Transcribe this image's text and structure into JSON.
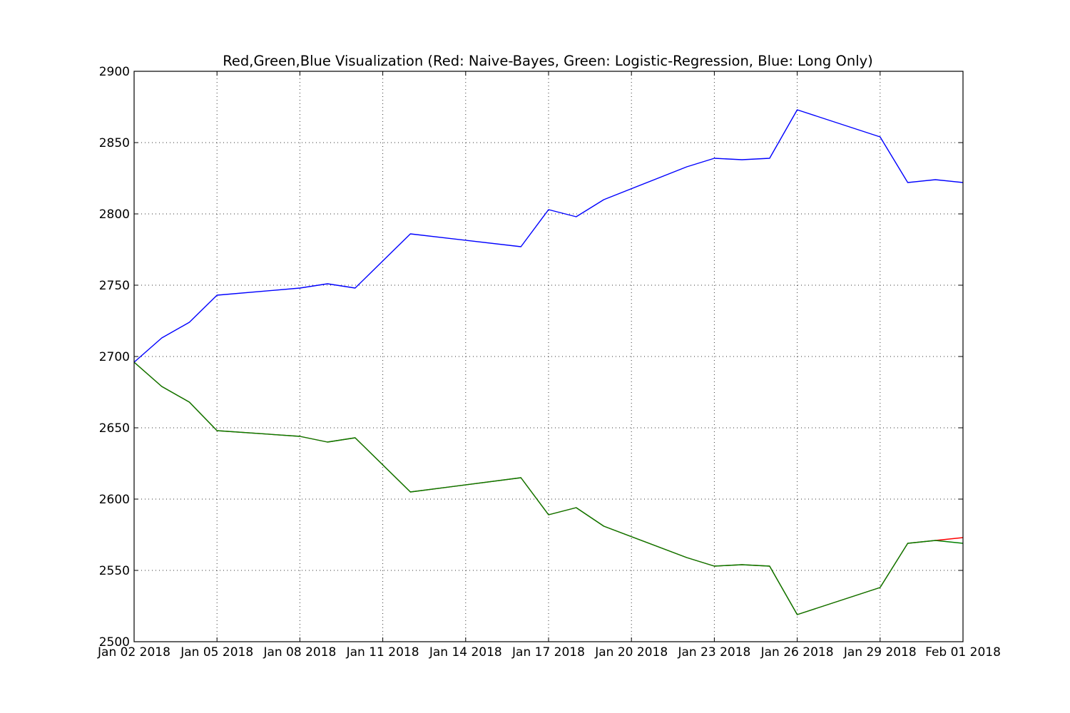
{
  "chart_data": {
    "type": "line",
    "title": "Red,Green,Blue Visualization (Red: Naive-Bayes, Green: Logistic-Regression, Blue: Long Only)",
    "xlabel": "",
    "ylabel": "",
    "xlim": [
      "2018-01-02",
      "2018-02-01"
    ],
    "ylim": [
      2500,
      2900
    ],
    "grid": true,
    "x_ticks": [
      "Jan 02 2018",
      "Jan 05 2018",
      "Jan 08 2018",
      "Jan 11 2018",
      "Jan 14 2018",
      "Jan 17 2018",
      "Jan 20 2018",
      "Jan 23 2018",
      "Jan 26 2018",
      "Jan 29 2018",
      "Feb 01 2018"
    ],
    "y_ticks": [
      2500,
      2550,
      2600,
      2650,
      2700,
      2750,
      2800,
      2850,
      2900
    ],
    "x": [
      "2018-01-02",
      "2018-01-03",
      "2018-01-04",
      "2018-01-05",
      "2018-01-08",
      "2018-01-09",
      "2018-01-10",
      "2018-01-12",
      "2018-01-16",
      "2018-01-17",
      "2018-01-18",
      "2018-01-19",
      "2018-01-22",
      "2018-01-23",
      "2018-01-24",
      "2018-01-25",
      "2018-01-26",
      "2018-01-29",
      "2018-01-30",
      "2018-01-31",
      "2018-02-01"
    ],
    "series": [
      {
        "color": "#ff0000",
        "values": [
          2696,
          2679,
          2668,
          2648,
          2644,
          2640,
          2643,
          2605,
          2615,
          2589,
          2594,
          2581,
          2559,
          2553,
          2554,
          2553,
          2519,
          2538,
          2569,
          2571,
          2573
        ]
      },
      {
        "color": "#008000",
        "values": [
          2696,
          2679,
          2668,
          2648,
          2644,
          2640,
          2643,
          2605,
          2615,
          2589,
          2594,
          2581,
          2559,
          2553,
          2554,
          2553,
          2519,
          2538,
          2569,
          2571,
          2569
        ]
      },
      {
        "color": "#0000ff",
        "values": [
          2696,
          2713,
          2724,
          2743,
          2748,
          2751,
          2748,
          2786,
          2777,
          2803,
          2798,
          2810,
          2833,
          2839,
          2838,
          2839,
          2873,
          2854,
          2822,
          2824,
          2822
        ]
      }
    ]
  }
}
